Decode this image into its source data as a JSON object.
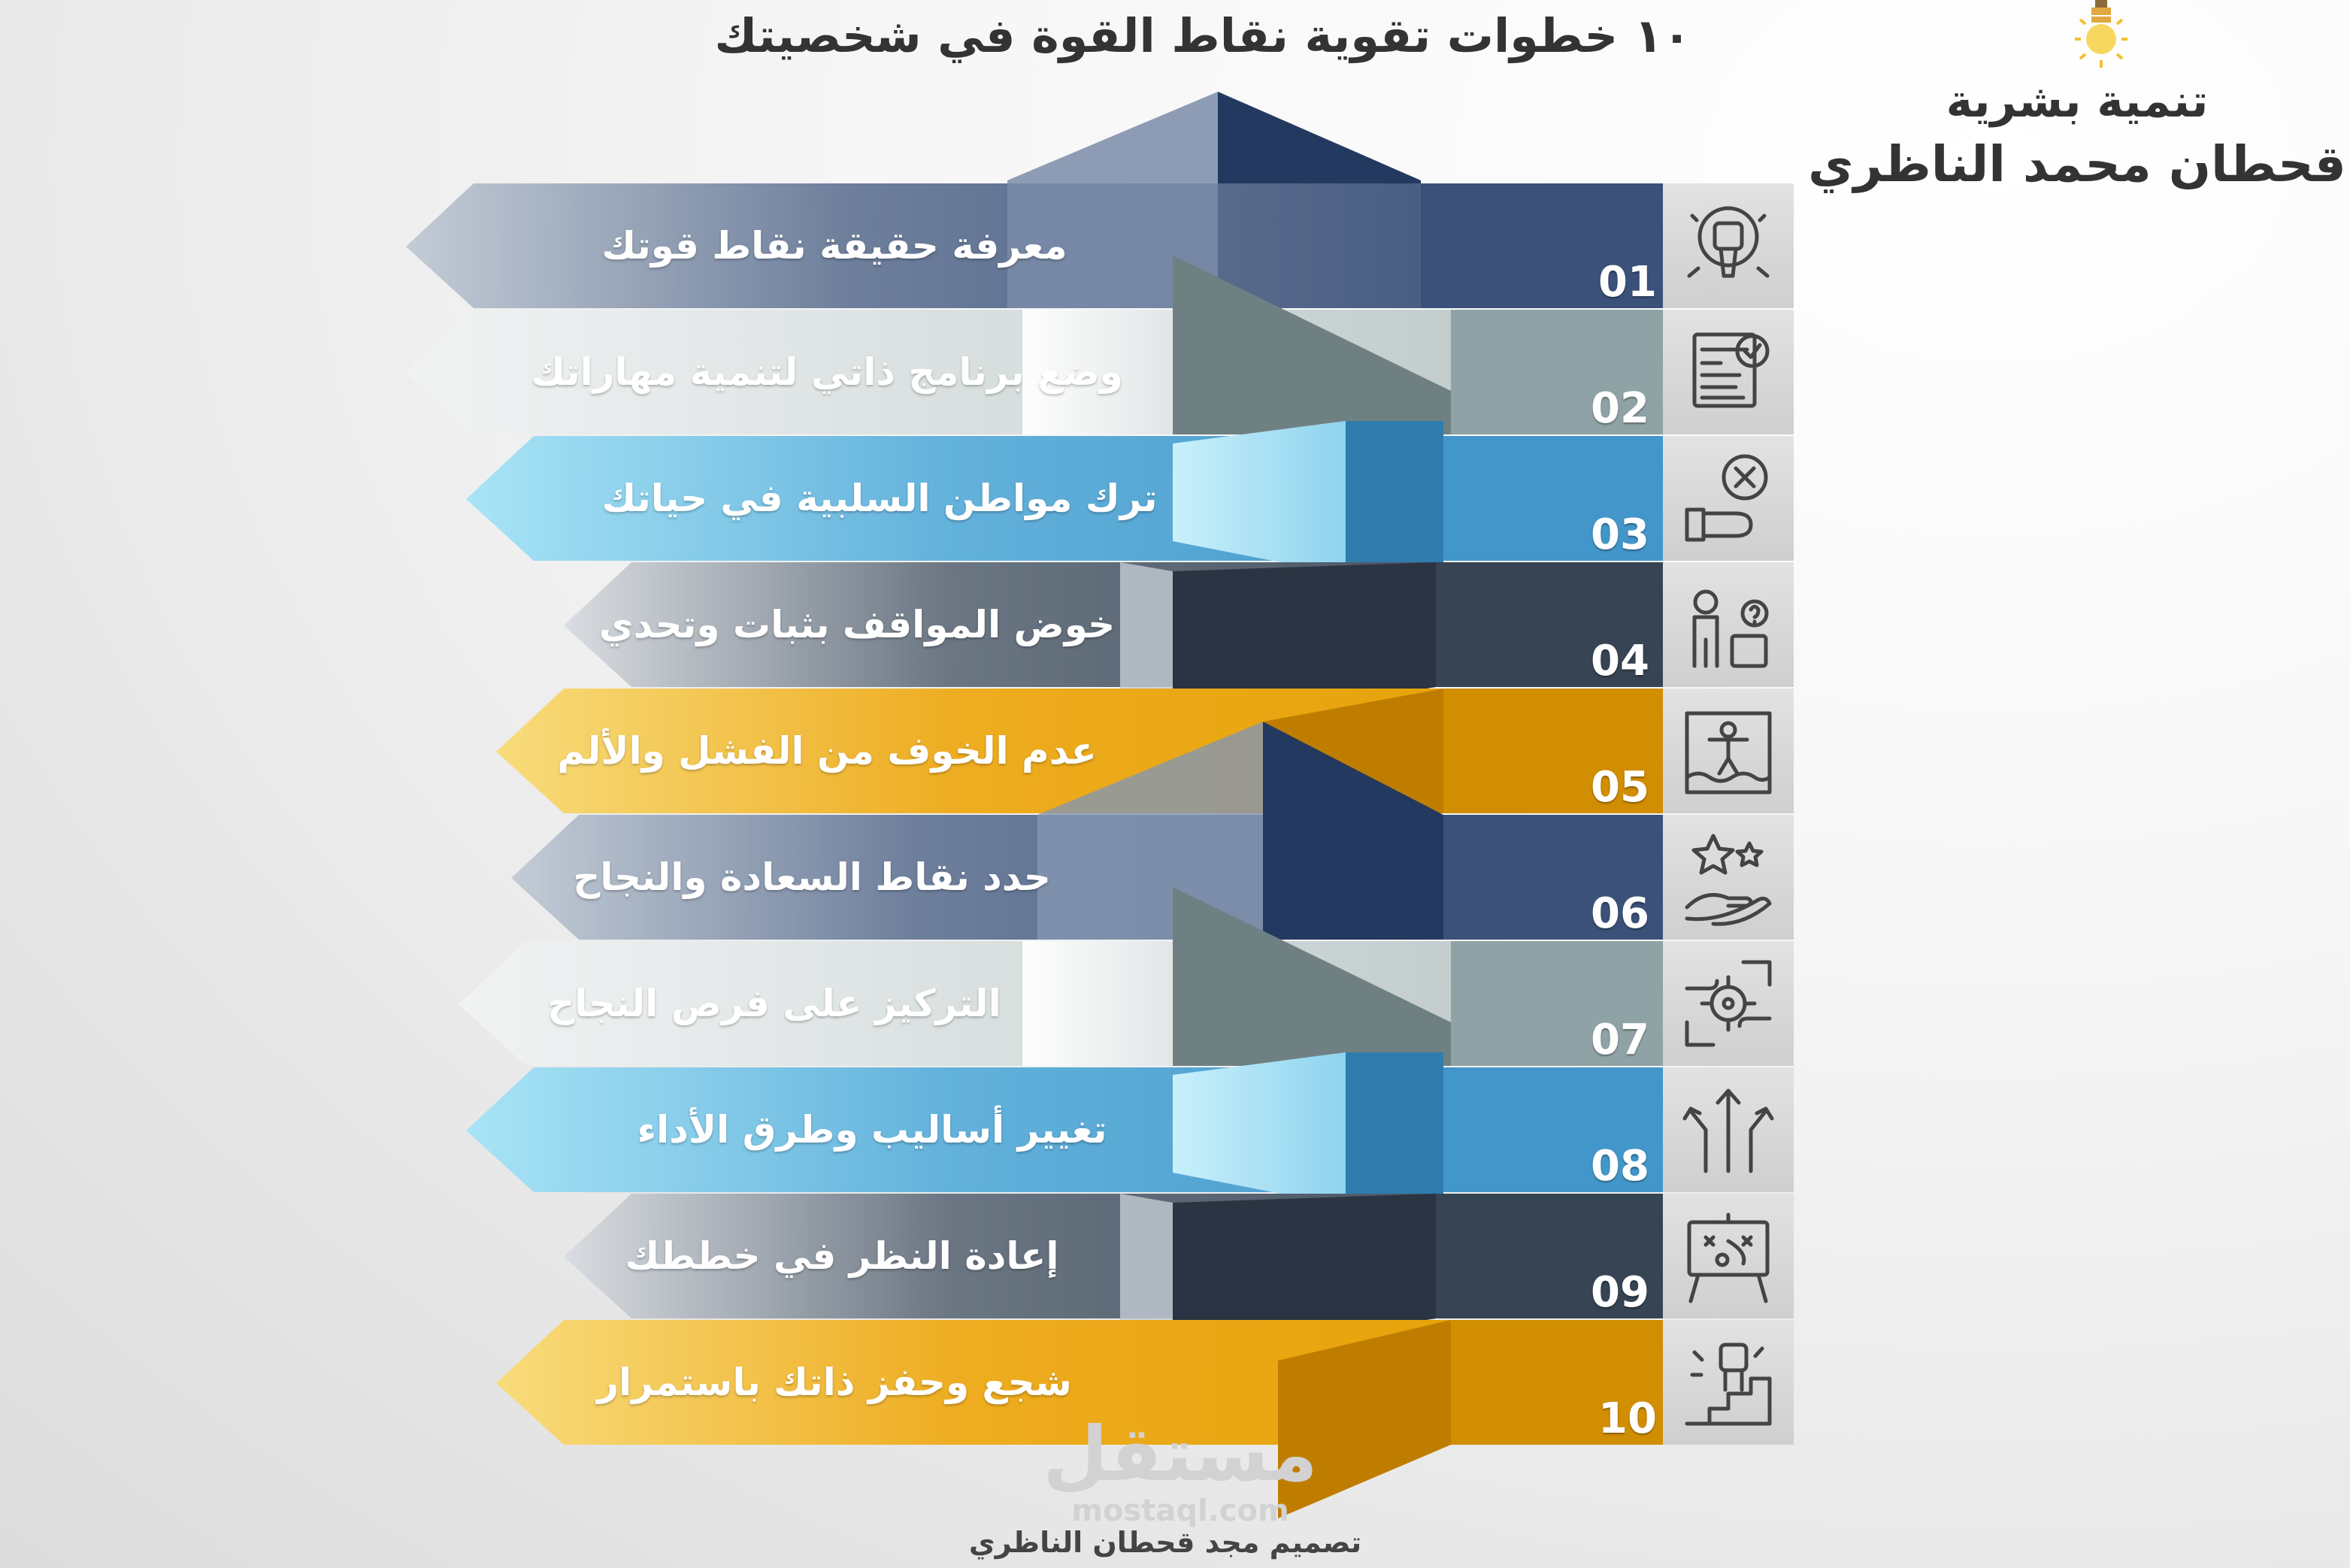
{
  "title": "١٠ خطوات تقوية نقاط القوة في شخصيتك",
  "brand": {
    "line1": "تنمية بشرية",
    "line2": "قحطان محمد الناظري",
    "icon": "lightbulb-icon"
  },
  "steps": [
    {
      "number": "01",
      "text": "معرفة حقيقة نقاط قوتك",
      "color": "#3b5179",
      "icon": "fist-rocket-icon"
    },
    {
      "number": "02",
      "text": "وضع برنامج ذاتي لتنمية مهاراتك",
      "color": "#8fa2a5",
      "icon": "checklist-document-icon"
    },
    {
      "number": "03",
      "text": "ترك مواطن السلبية في حياتك",
      "color": "#4396c9",
      "icon": "hand-reject-icon"
    },
    {
      "number": "04",
      "text": "خوض المواقف بثبات وتحدي",
      "color": "#374454",
      "icon": "thinking-person-puzzle-icon"
    },
    {
      "number": "05",
      "text": "عدم الخوف من الفشل والألم",
      "color": "#d08e00",
      "icon": "person-sinking-icon"
    },
    {
      "number": "06",
      "text": "حدد نقاط السعادة والنجاح",
      "color": "#3b5179",
      "icon": "hand-stars-icon"
    },
    {
      "number": "07",
      "text": "التركيز على فرص النجاح",
      "color": "#8fa2a5",
      "icon": "focus-target-hands-icon"
    },
    {
      "number": "08",
      "text": "تغيير أساليب وطرق الأداء",
      "color": "#4396c9",
      "icon": "road-arrows-icon"
    },
    {
      "number": "09",
      "text": "إعادة النظر في خططك",
      "color": "#374454",
      "icon": "strategy-board-icon"
    },
    {
      "number": "10",
      "text": "شجع وحفز ذاتك باستمرار",
      "color": "#d08e00",
      "icon": "fist-stairs-icon"
    }
  ],
  "watermark": {
    "arabic": "مستقل",
    "latin": "mostaql.com"
  },
  "credit": "تصميم مجد قحطان الناظري"
}
